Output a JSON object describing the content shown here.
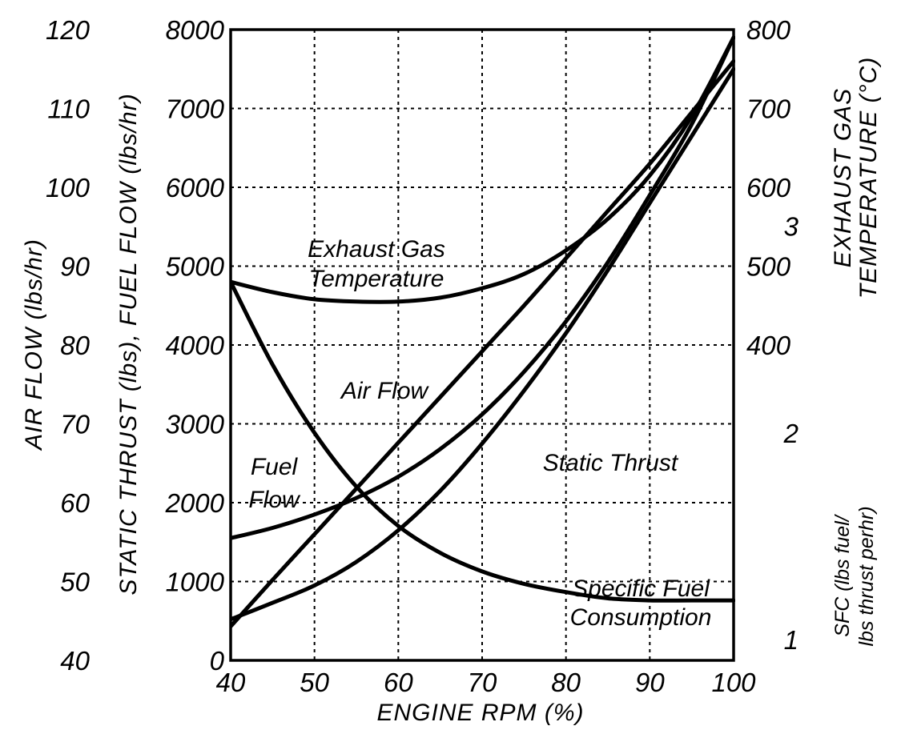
{
  "chart_data": {
    "type": "line",
    "x_axis": {
      "label": "ENGINE RPM (%)",
      "range": [
        40,
        100
      ],
      "ticks": [
        40,
        50,
        60,
        70,
        80,
        90,
        100
      ]
    },
    "left_axes": [
      {
        "id": "air_flow",
        "label": "AIR FLOW (lbs/hr)",
        "range": [
          40,
          120
        ],
        "ticks": [
          40,
          50,
          60,
          70,
          80,
          90,
          100,
          110,
          120
        ]
      },
      {
        "id": "thrust_fuel",
        "label": "STATIC THRUST (lbs), FUEL FLOW (lbs/hr)",
        "range": [
          0,
          8000
        ],
        "ticks": [
          0,
          1000,
          2000,
          3000,
          4000,
          5000,
          6000,
          7000,
          8000
        ]
      }
    ],
    "right_axes": [
      {
        "id": "egt",
        "label_lines": [
          "EXHAUST GAS",
          "TEMPERATURE (°C)"
        ],
        "range": [
          0,
          800
        ],
        "ticks": [
          400,
          500,
          600,
          700,
          800
        ]
      },
      {
        "id": "sfc",
        "label_lines": [
          "SFC (lbs fuel/",
          "lbs thrust perhr)"
        ],
        "range": [
          0.9,
          3.95
        ],
        "ticks": [
          1,
          2,
          3
        ]
      }
    ],
    "grid": true,
    "series": [
      {
        "name": "Exhaust Gas Temperature",
        "label_lines": [
          "Exhaust Gas",
          "Temperature"
        ],
        "axis": "egt",
        "x": [
          40,
          45,
          50,
          55,
          60,
          65,
          70,
          75,
          80,
          85,
          90,
          95,
          100
        ],
        "y": [
          480,
          467,
          458,
          455,
          455,
          460,
          472,
          490,
          520,
          560,
          615,
          690,
          790
        ]
      },
      {
        "name": "Air Flow",
        "label_lines": [
          "Air Flow"
        ],
        "axis": "air_flow",
        "x": [
          40,
          45,
          50,
          55,
          60,
          65,
          70,
          75,
          80,
          85,
          90,
          95,
          100
        ],
        "y": [
          44.3,
          50.2,
          56.0,
          61.8,
          67.6,
          73.4,
          79.2,
          85.0,
          91.0,
          97.0,
          103.0,
          109.5,
          116.0
        ]
      },
      {
        "name": "Fuel Flow",
        "label_lines": [
          "Fuel",
          "Flow"
        ],
        "axis": "thrust_fuel",
        "x": [
          40,
          45,
          50,
          55,
          60,
          65,
          70,
          75,
          80,
          85,
          90,
          95,
          100
        ],
        "y": [
          1550,
          1680,
          1850,
          2060,
          2330,
          2680,
          3120,
          3660,
          4300,
          5050,
          5900,
          6800,
          7900
        ]
      },
      {
        "name": "Static Thrust",
        "label_lines": [
          "Static Thrust"
        ],
        "axis": "thrust_fuel",
        "x": [
          40,
          45,
          50,
          55,
          60,
          65,
          70,
          75,
          80,
          85,
          90,
          95,
          100
        ],
        "y": [
          520,
          730,
          950,
          1250,
          1650,
          2150,
          2750,
          3420,
          4150,
          4950,
          5800,
          6650,
          7500
        ]
      },
      {
        "name": "Specific Fuel Consumption",
        "label_lines": [
          "Specific Fuel",
          "Consumption"
        ],
        "axis": "sfc",
        "x": [
          40,
          45,
          50,
          55,
          60,
          65,
          70,
          75,
          80,
          85,
          90,
          95,
          100
        ],
        "y": [
          2.73,
          2.33,
          2.0,
          1.74,
          1.55,
          1.42,
          1.33,
          1.27,
          1.23,
          1.2,
          1.19,
          1.19,
          1.19
        ]
      }
    ]
  }
}
